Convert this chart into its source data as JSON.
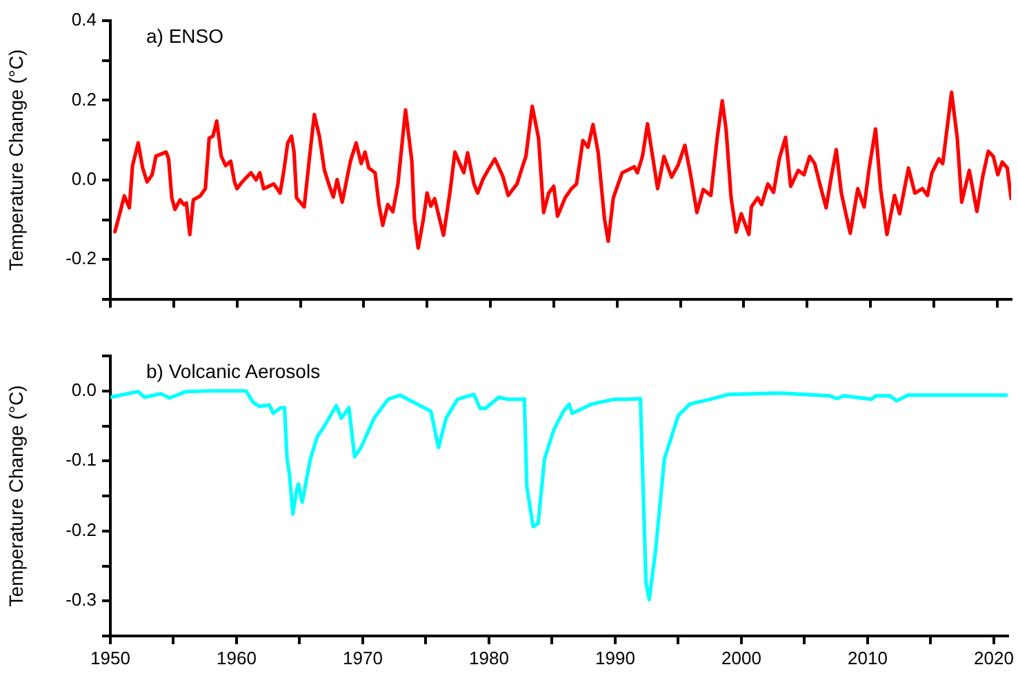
{
  "chart_data": [
    {
      "type": "line",
      "title": "a) ENSO",
      "ylabel": "Temperature Change (°C)",
      "color": "#ff0000",
      "x": [
        1950.36,
        1950.7,
        1951.1,
        1951.5,
        1951.75,
        1952.2,
        1952.55,
        1952.9,
        1953.3,
        1953.6,
        1954.4,
        1954.6,
        1954.85,
        1955.1,
        1955.5,
        1955.8,
        1956.0,
        1956.27,
        1956.55,
        1957.1,
        1957.5,
        1957.8,
        1958.1,
        1958.4,
        1958.75,
        1959.1,
        1959.5,
        1959.8,
        1960.0,
        1960.4,
        1961.1,
        1961.5,
        1961.8,
        1962.1,
        1962.9,
        1963.4,
        1963.7,
        1964.0,
        1964.3,
        1964.5,
        1964.7,
        1965.3,
        1965.8,
        1966.1,
        1966.5,
        1966.9,
        1967.3,
        1967.6,
        1967.9,
        1968.3,
        1968.95,
        1969.4,
        1969.8,
        1970.1,
        1970.4,
        1970.9,
        1971.2,
        1971.5,
        1971.9,
        1972.3,
        1972.7,
        1973.3,
        1973.8,
        1974.0,
        1974.3,
        1974.7,
        1975.0,
        1975.3,
        1975.6,
        1976.0,
        1976.3,
        1976.8,
        1977.2,
        1977.5,
        1977.9,
        1978.2,
        1978.7,
        1979.0,
        1979.4,
        1979.8,
        1980.35,
        1980.6,
        1981.0,
        1981.4,
        1982.1,
        1982.6,
        1982.8,
        1983.3,
        1983.8,
        1984.2,
        1984.6,
        1985.0,
        1985.3,
        1985.9,
        1986.4,
        1986.8,
        1987.3,
        1987.7,
        1988.1,
        1988.5,
        1989.0,
        1989.3,
        1989.7,
        1990.4,
        1991.35,
        1991.6,
        1992.0,
        1992.4,
        1993.2,
        1993.7,
        1994.3,
        1994.8,
        1995.35,
        1995.8,
        1996.3,
        1996.8,
        1997.4,
        1997.9,
        1998.3,
        1998.6,
        1999.0,
        1999.4,
        1999.8,
        2000.4,
        2000.6,
        2001.1,
        2001.4,
        2001.9,
        2002.35,
        2002.8,
        2003.3,
        2003.7,
        2004.3,
        2004.75,
        2005.2,
        2005.6,
        2006.0,
        2006.5,
        2006.9,
        2007.3,
        2007.7,
        2008.4,
        2009.0,
        2009.5,
        2009.9,
        2010.4,
        2010.8,
        2011.3,
        2011.9,
        2012.3,
        2013.0,
        2013.5,
        2014.1,
        2014.5,
        2014.85,
        2015.4,
        2015.7,
        2016.4,
        2016.85,
        2017.2,
        2017.8,
        2018.4,
        2018.85,
        2019.3,
        2019.7,
        2020.05,
        2020.4,
        2020.8,
        2021.1
      ],
      "values": [
        -0.13,
        -0.09,
        -0.04,
        -0.07,
        0.036,
        0.093,
        0.03,
        -0.005,
        0.013,
        0.06,
        0.07,
        0.053,
        -0.045,
        -0.074,
        -0.05,
        -0.062,
        -0.058,
        -0.137,
        -0.05,
        -0.04,
        -0.022,
        0.105,
        0.11,
        0.148,
        0.06,
        0.036,
        0.047,
        -0.005,
        -0.022,
        -0.005,
        0.018,
        0,
        0.018,
        -0.022,
        -0.01,
        -0.033,
        0.024,
        0.093,
        0.11,
        0.07,
        -0.045,
        -0.068,
        0.08,
        0.164,
        0.11,
        0.024,
        -0.016,
        -0.043,
        0.001,
        -0.056,
        0.047,
        0.093,
        0.041,
        0.07,
        0.03,
        0.018,
        -0.062,
        -0.114,
        -0.062,
        -0.08,
        -0.01,
        0.176,
        0.047,
        -0.097,
        -0.171,
        -0.1,
        -0.033,
        -0.066,
        -0.047,
        -0.1,
        -0.139,
        -0.033,
        0.07,
        0.047,
        0.018,
        0.068,
        -0.01,
        -0.033,
        0.001,
        0.024,
        0.053,
        0.036,
        0.007,
        -0.039,
        -0.01,
        0.04,
        0.059,
        0.185,
        0.105,
        -0.082,
        -0.033,
        -0.016,
        -0.091,
        -0.045,
        -0.022,
        -0.01,
        0.099,
        0.082,
        0.139,
        0.07,
        -0.097,
        -0.154,
        -0.045,
        0.018,
        0.033,
        0.018,
        0.059,
        0.141,
        -0.022,
        0.059,
        0.007,
        0.036,
        0.087,
        0.013,
        -0.082,
        -0.024,
        -0.039,
        0.105,
        0.199,
        0.128,
        -0.045,
        -0.131,
        -0.085,
        -0.137,
        -0.068,
        -0.045,
        -0.062,
        -0.01,
        -0.031,
        0.053,
        0.107,
        -0.016,
        0.024,
        0.013,
        0.059,
        0.041,
        -0.01,
        -0.07,
        0.007,
        0.076,
        -0.033,
        -0.134,
        -0.022,
        -0.068,
        0.03,
        0.128,
        -0.022,
        -0.137,
        -0.039,
        -0.085,
        0.03,
        -0.033,
        -0.022,
        -0.039,
        0.018,
        0.053,
        0.041,
        0.22,
        0.105,
        -0.056,
        0.024,
        -0.079,
        0.007,
        0.072,
        0.059,
        0.013,
        0.045,
        0.03,
        -0.047
      ],
      "xlim": [
        1950,
        2021.1
      ],
      "xticks": [
        1950,
        {
          "value": 1955,
          "label": null
        },
        1960,
        {
          "value": 1965,
          "label": null
        },
        1970,
        {
          "value": 1975,
          "label": null
        },
        1980,
        {
          "value": 1985,
          "label": null
        },
        1990,
        {
          "value": 1995,
          "label": null
        },
        2000,
        {
          "value": 2005,
          "label": null
        },
        2010,
        {
          "value": 2015,
          "label": null
        },
        2020
      ],
      "ylim": [
        -0.3,
        0.4
      ],
      "yticks": [
        {
          "value": -0.3,
          "label": null
        },
        {
          "value": -0.2,
          "label": "-0.2"
        },
        {
          "value": -0.1,
          "label": null
        },
        {
          "value": 0,
          "label": "0.0"
        },
        {
          "value": 0.1,
          "label": null
        },
        {
          "value": 0.2,
          "label": "0.2"
        },
        {
          "value": 0.3,
          "label": null
        },
        {
          "value": 0.4,
          "label": "0.4"
        }
      ],
      "tick_labels": "y",
      "grid": false,
      "legend": false,
      "marker": "none",
      "line_style": "solid"
    },
    {
      "type": "line",
      "title": "b) Volcanic Aerosols",
      "ylabel": "Temperature Change (°C)",
      "color": "#00ffff",
      "x": [
        1950,
        1951.1,
        1952.2,
        1952.7,
        1954.0,
        1954.7,
        1956.0,
        1957.8,
        1960.75,
        1961.3,
        1961.8,
        1962.6,
        1962.9,
        1963.5,
        1963.8,
        1964.0,
        1964.2,
        1964.46,
        1964.75,
        1964.9,
        1965.2,
        1965.85,
        1966.4,
        1966.9,
        1967.9,
        1968.3,
        1968.9,
        1969.35,
        1969.85,
        1970.9,
        1972.0,
        1972.95,
        1975.4,
        1976.0,
        1976.6,
        1977.5,
        1978.8,
        1979.3,
        1979.7,
        1980.8,
        1981.5,
        1982.6,
        1982.8,
        1983.0,
        1983.5,
        1983.9,
        1984.4,
        1985.15,
        1985.9,
        1986.35,
        1986.6,
        1988.1,
        1989.9,
        1991.0,
        1992.0,
        1992.44,
        1992.7,
        1993.2,
        1993.9,
        1995.0,
        1995.9,
        1997.5,
        1999.0,
        2003.0,
        2007.0,
        2007.55,
        2008.1,
        2010.3,
        2010.65,
        2011.75,
        2012.3,
        2013.2,
        2021.1
      ],
      "values": [
        -0.009,
        -0.005,
        -0.001,
        -0.009,
        -0.004,
        -0.01,
        -0.001,
        0,
        0,
        -0.016,
        -0.022,
        -0.02,
        -0.032,
        -0.024,
        -0.024,
        -0.097,
        -0.12,
        -0.176,
        -0.143,
        -0.133,
        -0.159,
        -0.097,
        -0.065,
        -0.052,
        -0.021,
        -0.039,
        -0.024,
        -0.094,
        -0.081,
        -0.039,
        -0.012,
        -0.006,
        -0.029,
        -0.081,
        -0.039,
        -0.012,
        -0.005,
        -0.025,
        -0.025,
        -0.009,
        -0.012,
        -0.012,
        -0.011,
        -0.137,
        -0.194,
        -0.189,
        -0.097,
        -0.055,
        -0.029,
        -0.019,
        -0.032,
        -0.019,
        -0.012,
        -0.012,
        -0.011,
        -0.274,
        -0.298,
        -0.228,
        -0.097,
        -0.035,
        -0.019,
        -0.012,
        -0.005,
        -0.003,
        -0.007,
        -0.011,
        -0.007,
        -0.012,
        -0.007,
        -0.007,
        -0.014,
        -0.006,
        -0.006
      ],
      "xlim": [
        1950,
        2021.1
      ],
      "xticks": [
        1950,
        {
          "value": 1955,
          "label": null
        },
        1960,
        {
          "value": 1965,
          "label": null
        },
        1970,
        {
          "value": 1975,
          "label": null
        },
        1980,
        {
          "value": 1985,
          "label": null
        },
        1990,
        {
          "value": 1995,
          "label": null
        },
        2000,
        {
          "value": 2005,
          "label": null
        },
        2010,
        {
          "value": 2015,
          "label": null
        },
        2020
      ],
      "ylim": [
        -0.35,
        0.05
      ],
      "yticks": [
        {
          "value": -0.35,
          "label": null
        },
        {
          "value": -0.3,
          "label": "-0.3"
        },
        {
          "value": -0.25,
          "label": null
        },
        {
          "value": -0.2,
          "label": "-0.2"
        },
        {
          "value": -0.15,
          "label": null
        },
        {
          "value": -0.1,
          "label": "-0.1"
        },
        {
          "value": -0.05,
          "label": null
        },
        {
          "value": 0,
          "label": "0.0"
        },
        {
          "value": 0.05,
          "label": null
        }
      ],
      "grid": false,
      "legend": false,
      "marker": "none",
      "line_style": "solid"
    }
  ]
}
